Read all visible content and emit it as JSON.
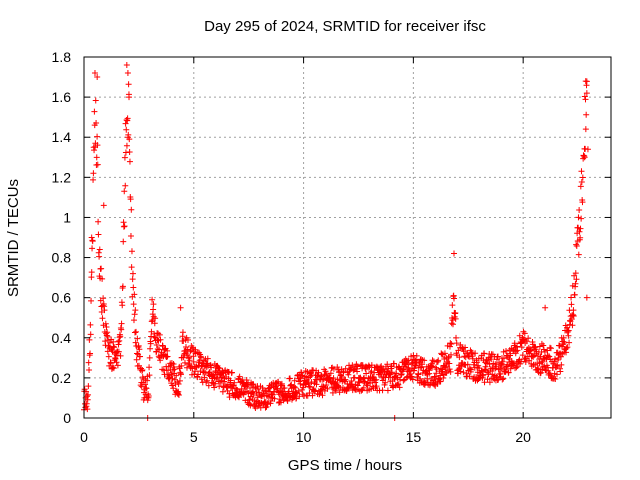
{
  "chart_data": {
    "type": "scatter",
    "title": "Day 295 of 2024, SRMTID for receiver ifsc",
    "xlabel": "GPS time / hours",
    "ylabel": "SRMTID / TECUs",
    "xlim": [
      0,
      24
    ],
    "ylim": [
      0,
      1.8
    ],
    "xticks": [
      0,
      5,
      10,
      15,
      20
    ],
    "yticks": [
      0,
      0.2,
      0.4,
      0.6,
      0.8,
      1,
      1.2,
      1.4,
      1.6,
      1.8
    ],
    "grid": true,
    "marker": "+",
    "color": "#ff0000",
    "profile": [
      [
        0.0,
        0.1
      ],
      [
        0.15,
        0.08
      ],
      [
        0.3,
        0.45
      ],
      [
        0.5,
        1.55
      ],
      [
        0.6,
        1.3
      ],
      [
        0.7,
        0.75
      ],
      [
        0.9,
        0.5
      ],
      [
        1.1,
        0.35
      ],
      [
        1.3,
        0.3
      ],
      [
        1.5,
        0.32
      ],
      [
        1.7,
        0.4
      ],
      [
        1.9,
        1.35
      ],
      [
        2.05,
        1.5
      ],
      [
        2.2,
        0.7
      ],
      [
        2.4,
        0.35
      ],
      [
        2.7,
        0.15
      ],
      [
        2.95,
        0.15
      ],
      [
        3.1,
        0.58
      ],
      [
        3.3,
        0.38
      ],
      [
        3.6,
        0.3
      ],
      [
        4.0,
        0.22
      ],
      [
        4.3,
        0.15
      ],
      [
        4.5,
        0.35
      ],
      [
        5.0,
        0.28
      ],
      [
        6.0,
        0.2
      ],
      [
        7.0,
        0.15
      ],
      [
        8.0,
        0.1
      ],
      [
        9.0,
        0.13
      ],
      [
        10.0,
        0.17
      ],
      [
        11.0,
        0.18
      ],
      [
        12.0,
        0.2
      ],
      [
        13.0,
        0.2
      ],
      [
        14.0,
        0.2
      ],
      [
        15.0,
        0.25
      ],
      [
        16.0,
        0.22
      ],
      [
        16.7,
        0.3
      ],
      [
        16.85,
        0.65
      ],
      [
        17.0,
        0.3
      ],
      [
        18.0,
        0.25
      ],
      [
        19.0,
        0.25
      ],
      [
        19.5,
        0.3
      ],
      [
        20.0,
        0.35
      ],
      [
        20.5,
        0.3
      ],
      [
        21.0,
        0.3
      ],
      [
        21.5,
        0.25
      ],
      [
        22.0,
        0.4
      ],
      [
        22.3,
        0.6
      ],
      [
        22.5,
        0.9
      ],
      [
        22.7,
        1.2
      ],
      [
        22.85,
        1.55
      ],
      [
        22.9,
        1.6
      ]
    ],
    "outliers": [
      [
        0.5,
        1.72
      ],
      [
        0.6,
        1.7
      ],
      [
        1.95,
        1.76
      ],
      [
        2.0,
        1.72
      ],
      [
        2.05,
        1.6
      ],
      [
        0.9,
        1.06
      ],
      [
        0.35,
        0.9
      ],
      [
        16.85,
        0.82
      ],
      [
        22.85,
        1.68
      ],
      [
        22.9,
        1.62
      ],
      [
        22.95,
        1.34
      ],
      [
        22.8,
        1.3
      ],
      [
        22.9,
        0.6
      ],
      [
        14.15,
        0.0
      ],
      [
        2.9,
        0.0
      ],
      [
        4.4,
        0.55
      ],
      [
        21.0,
        0.55
      ]
    ]
  }
}
